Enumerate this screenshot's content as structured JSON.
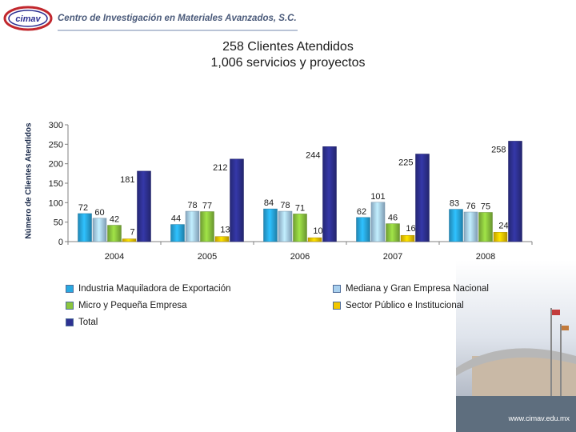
{
  "header": {
    "org_name": "Centro de Investigación en Materiales Avanzados, S.C."
  },
  "footer": {
    "url": "www.cimav.edu.mx"
  },
  "chart_data": {
    "type": "bar",
    "title": "258 Clientes Atendidos",
    "subtitle": "1,006 servicios y proyectos",
    "ylabel": "Número de Clientes Atendidos",
    "xlabel": "",
    "ylim": [
      0,
      300
    ],
    "yticks": [
      0,
      50,
      100,
      150,
      200,
      250,
      300
    ],
    "categories": [
      "2004",
      "2005",
      "2006",
      "2007",
      "2008"
    ],
    "legend_position": "bottom",
    "series": [
      {
        "name": "Industria Maquiladora de Exportación",
        "color": "#29a9e1",
        "values": [
          72,
          44,
          84,
          62,
          83
        ]
      },
      {
        "name": "Mediana y Gran Empresa Nacional",
        "color": "#a9d0ee",
        "values": [
          60,
          78,
          78,
          101,
          76
        ]
      },
      {
        "name": "Micro y Pequeña Empresa",
        "color": "#8cc63f",
        "values": [
          42,
          77,
          71,
          46,
          75
        ]
      },
      {
        "name": "Sector Público e Institucional",
        "color": "#f2c700",
        "values": [
          7,
          13,
          10,
          16,
          24
        ]
      },
      {
        "name": "Total",
        "color": "#2e3192",
        "values": [
          181,
          212,
          244,
          225,
          258
        ]
      }
    ]
  }
}
